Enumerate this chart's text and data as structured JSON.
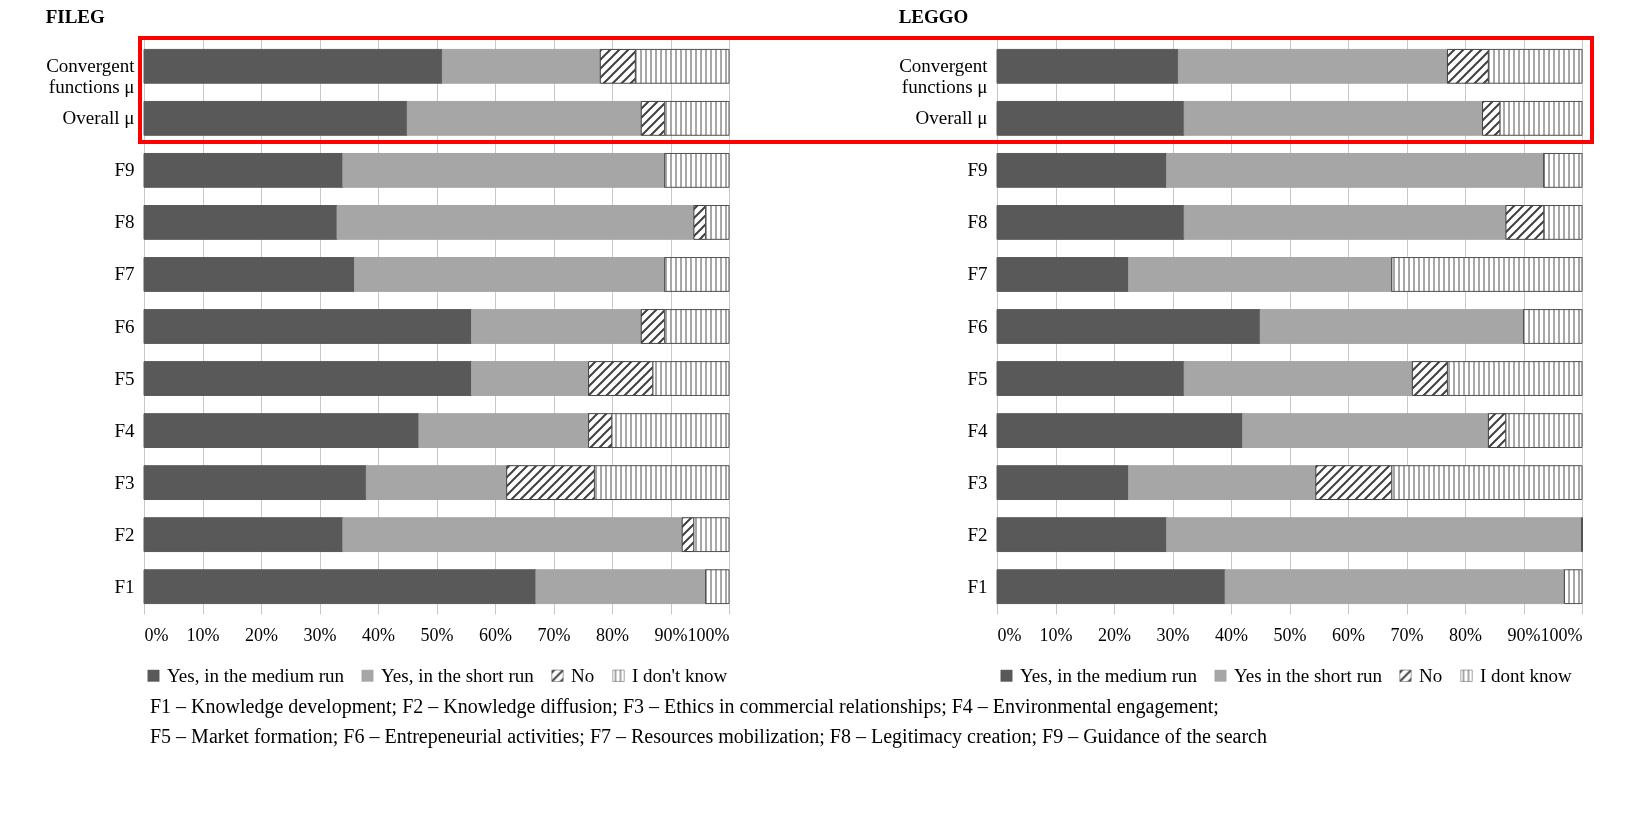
{
  "chart_data": [
    {
      "type": "bar",
      "title": "FILEG",
      "orientation": "horizontal",
      "stacked": true,
      "legend": "bottom",
      "grid": "x",
      "categories": [
        "Convergent functions μ",
        "Overall μ",
        "F9",
        "F8",
        "F7",
        "F6",
        "F5",
        "F4",
        "F3",
        "F2",
        "F1"
      ],
      "xlim": [
        0,
        100
      ],
      "xticks": [
        {
          "value": 0,
          "label": "0%"
        },
        {
          "value": 10,
          "label": "10%"
        },
        {
          "value": 20,
          "label": "20%"
        },
        {
          "value": 30,
          "label": "30%"
        },
        {
          "value": 40,
          "label": "40%"
        },
        {
          "value": 50,
          "label": "50%"
        },
        {
          "value": 60,
          "label": "60%"
        },
        {
          "value": 70,
          "label": "70%"
        },
        {
          "value": 80,
          "label": "80%"
        },
        {
          "value": 90,
          "label": "90%"
        },
        {
          "value": 100,
          "label": "100%"
        }
      ],
      "series": [
        {
          "name": "Yes, in the medium run",
          "color": "#595959",
          "values": [
            51,
            45,
            34,
            33,
            36,
            56,
            56,
            47,
            38,
            34,
            67
          ]
        },
        {
          "name": "Yes, in the short run",
          "color": "#a6a6a6",
          "values": [
            27,
            40,
            55,
            61,
            53,
            29,
            20,
            29,
            24,
            58,
            29
          ]
        },
        {
          "name": "No",
          "color": "#404040",
          "values": [
            6,
            4,
            0,
            2,
            0,
            4,
            11,
            4,
            15,
            2,
            0
          ]
        },
        {
          "name": "I don't know",
          "color": "#505050",
          "values": [
            16,
            11,
            11,
            4,
            11,
            11,
            13,
            20,
            23,
            6,
            4
          ]
        }
      ],
      "annotations": [
        "F1 – Knowledge development; F2 – Knowledge diffusion; F3 – Ethics in commercial relationships; F4 – Environmental engagement;",
        "F5 – Market formation; F6 – Entrepeneurial activities; F7 – Resources mobilization; F8 – Legitimacy creation; F9 – Guidance of the search"
      ]
    },
    {
      "type": "bar",
      "title": "LEGGO",
      "orientation": "horizontal",
      "stacked": true,
      "legend": "bottom",
      "grid": "x",
      "categories": [
        "Convergent functions μ",
        "Overall μ",
        "F9",
        "F8",
        "F7",
        "F6",
        "F5",
        "F4",
        "F3",
        "F2",
        "F1"
      ],
      "xlim": [
        0,
        100
      ],
      "xticks": [
        {
          "value": 0,
          "label": "0%"
        },
        {
          "value": 10,
          "label": "10%"
        },
        {
          "value": 20,
          "label": "20%"
        },
        {
          "value": 30,
          "label": "30%"
        },
        {
          "value": 40,
          "label": "40%"
        },
        {
          "value": 50,
          "label": "50%"
        },
        {
          "value": 60,
          "label": "60%"
        },
        {
          "value": 70,
          "label": "70%"
        },
        {
          "value": 80,
          "label": "80%"
        },
        {
          "value": 90,
          "label": "90%"
        },
        {
          "value": 100,
          "label": "100%"
        }
      ],
      "series": [
        {
          "name": "Yes, in the medium run",
          "color": "#595959",
          "values": [
            31,
            32,
            29,
            32,
            22.5,
            45,
            32,
            42,
            22.5,
            29,
            39
          ]
        },
        {
          "name": "Yes in the short run",
          "color": "#a6a6a6",
          "values": [
            46,
            51,
            64.5,
            55,
            45,
            45,
            39,
            42,
            32,
            71,
            58
          ]
        },
        {
          "name": "No",
          "color": "#404040",
          "values": [
            7,
            3,
            0,
            6.5,
            0,
            0,
            6,
            3,
            13,
            0,
            0
          ]
        },
        {
          "name": "I dont know",
          "color": "#505050",
          "values": [
            16,
            14,
            6.5,
            6.5,
            32.5,
            10,
            23,
            13,
            32.5,
            0,
            3
          ]
        }
      ]
    }
  ]
}
